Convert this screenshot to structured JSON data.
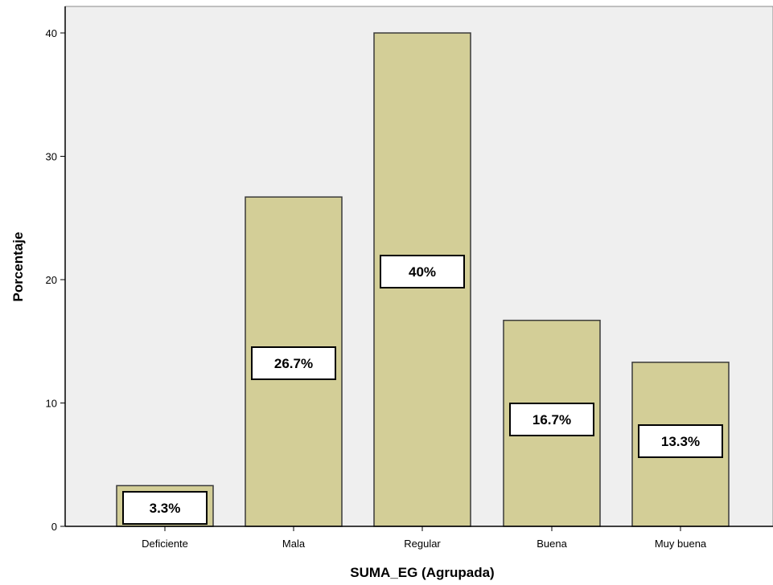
{
  "colors": {
    "plot_background": "#efefef",
    "bar_fill": "#d3ce97",
    "bar_stroke": "#3a3a3a",
    "axis": "#000000",
    "label_box_fill": "#ffffff",
    "label_box_stroke": "#000000"
  },
  "chart_data": {
    "type": "bar",
    "title": "",
    "xlabel": "SUMA_EG (Agrupada)",
    "ylabel": "Porcentaje",
    "ylim": [
      0,
      40
    ],
    "y_ticks": [
      0,
      10,
      20,
      30,
      40
    ],
    "y_tick_labels": [
      "0",
      "10",
      "20",
      "30",
      "40"
    ],
    "grid": false,
    "categories": [
      "Deficiente",
      "Mala",
      "Regular",
      "Buena",
      "Muy buena"
    ],
    "values": [
      3.3,
      26.7,
      40,
      16.7,
      13.3
    ],
    "data_labels": [
      "3.3%",
      "26.7%",
      "40%",
      "16.7%",
      "13.3%"
    ]
  }
}
